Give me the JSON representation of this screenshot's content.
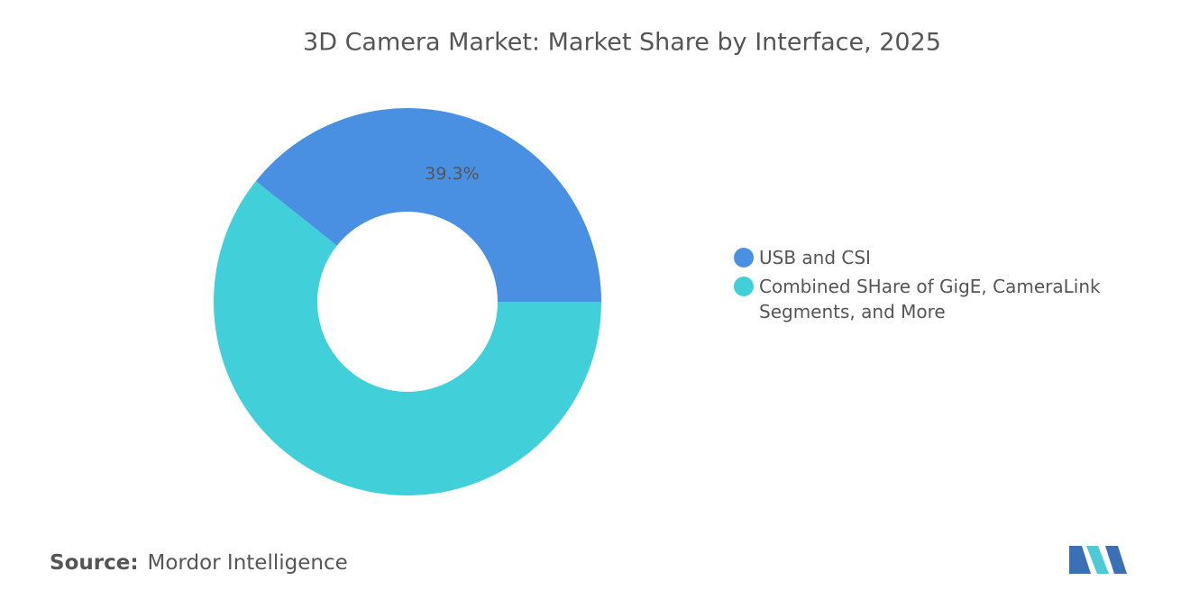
{
  "chart_data": {
    "type": "donut",
    "title": "3D Camera Market: Market Share by Interface, 2025",
    "categories": [
      "USB and CSI",
      "Combined SHare of GigE, CameraLink Segments, and More"
    ],
    "values": [
      39.3,
      60.7
    ],
    "value_labels": [
      "39.3%",
      null
    ],
    "colors": [
      "#4a90e2",
      "#41d0da"
    ],
    "source_label": "Source:",
    "source": "Mordor Intelligence"
  }
}
